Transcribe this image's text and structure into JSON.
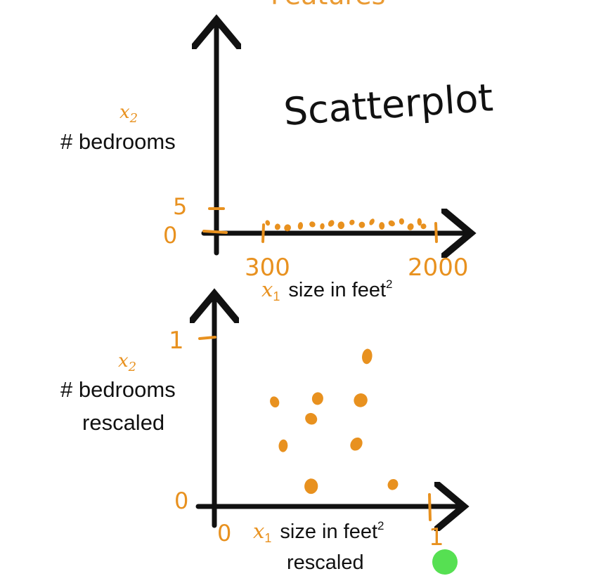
{
  "header_fragment": "Features",
  "annotation": "Scatterplot",
  "colors": {
    "axis": "#111111",
    "accent": "#e8911f",
    "text": "#111111",
    "dot_green": "#56e052",
    "background": "#ffffff"
  },
  "chart_data": [
    {
      "type": "scatter",
      "xlabel_var": "x",
      "xlabel_sub": "1",
      "xlabel": "size in feet",
      "xlabel_sup": "2",
      "ylabel_var": "x",
      "ylabel_sub": "2",
      "ylabel": "# bedrooms",
      "x_ticks": [
        "300",
        "2000"
      ],
      "y_ticks": [
        "0",
        "5"
      ],
      "xlim": [
        300,
        2000
      ],
      "ylim": [
        0,
        5
      ],
      "points": [
        {
          "x": 320,
          "y": 2.1
        },
        {
          "x": 420,
          "y": 1.3
        },
        {
          "x": 520,
          "y": 1.1
        },
        {
          "x": 650,
          "y": 1.5
        },
        {
          "x": 770,
          "y": 1.8
        },
        {
          "x": 870,
          "y": 1.4
        },
        {
          "x": 960,
          "y": 2.0
        },
        {
          "x": 1060,
          "y": 1.6
        },
        {
          "x": 1170,
          "y": 2.2
        },
        {
          "x": 1270,
          "y": 1.7
        },
        {
          "x": 1370,
          "y": 2.3
        },
        {
          "x": 1470,
          "y": 1.5
        },
        {
          "x": 1570,
          "y": 2.0
        },
        {
          "x": 1670,
          "y": 2.4
        },
        {
          "x": 1760,
          "y": 1.3
        },
        {
          "x": 1850,
          "y": 2.3
        },
        {
          "x": 1890,
          "y": 1.4
        }
      ]
    },
    {
      "type": "scatter",
      "xlabel_var": "x",
      "xlabel_sub": "1",
      "xlabel": "size in feet",
      "xlabel_sup": "2",
      "xlabel_line2": "rescaled",
      "ylabel_var": "x",
      "ylabel_sub": "2",
      "ylabel": "# bedrooms",
      "ylabel_line2": "rescaled",
      "x_ticks": [
        "0",
        "1"
      ],
      "y_ticks": [
        "0",
        "1"
      ],
      "xlim": [
        0,
        1
      ],
      "ylim": [
        0,
        1
      ],
      "points": [
        {
          "x": 0.28,
          "y": 0.62
        },
        {
          "x": 0.48,
          "y": 0.64
        },
        {
          "x": 0.68,
          "y": 0.63
        },
        {
          "x": 0.71,
          "y": 0.89
        },
        {
          "x": 0.45,
          "y": 0.52
        },
        {
          "x": 0.32,
          "y": 0.36
        },
        {
          "x": 0.66,
          "y": 0.37
        },
        {
          "x": 0.45,
          "y": 0.12
        },
        {
          "x": 0.83,
          "y": 0.13
        }
      ]
    }
  ]
}
